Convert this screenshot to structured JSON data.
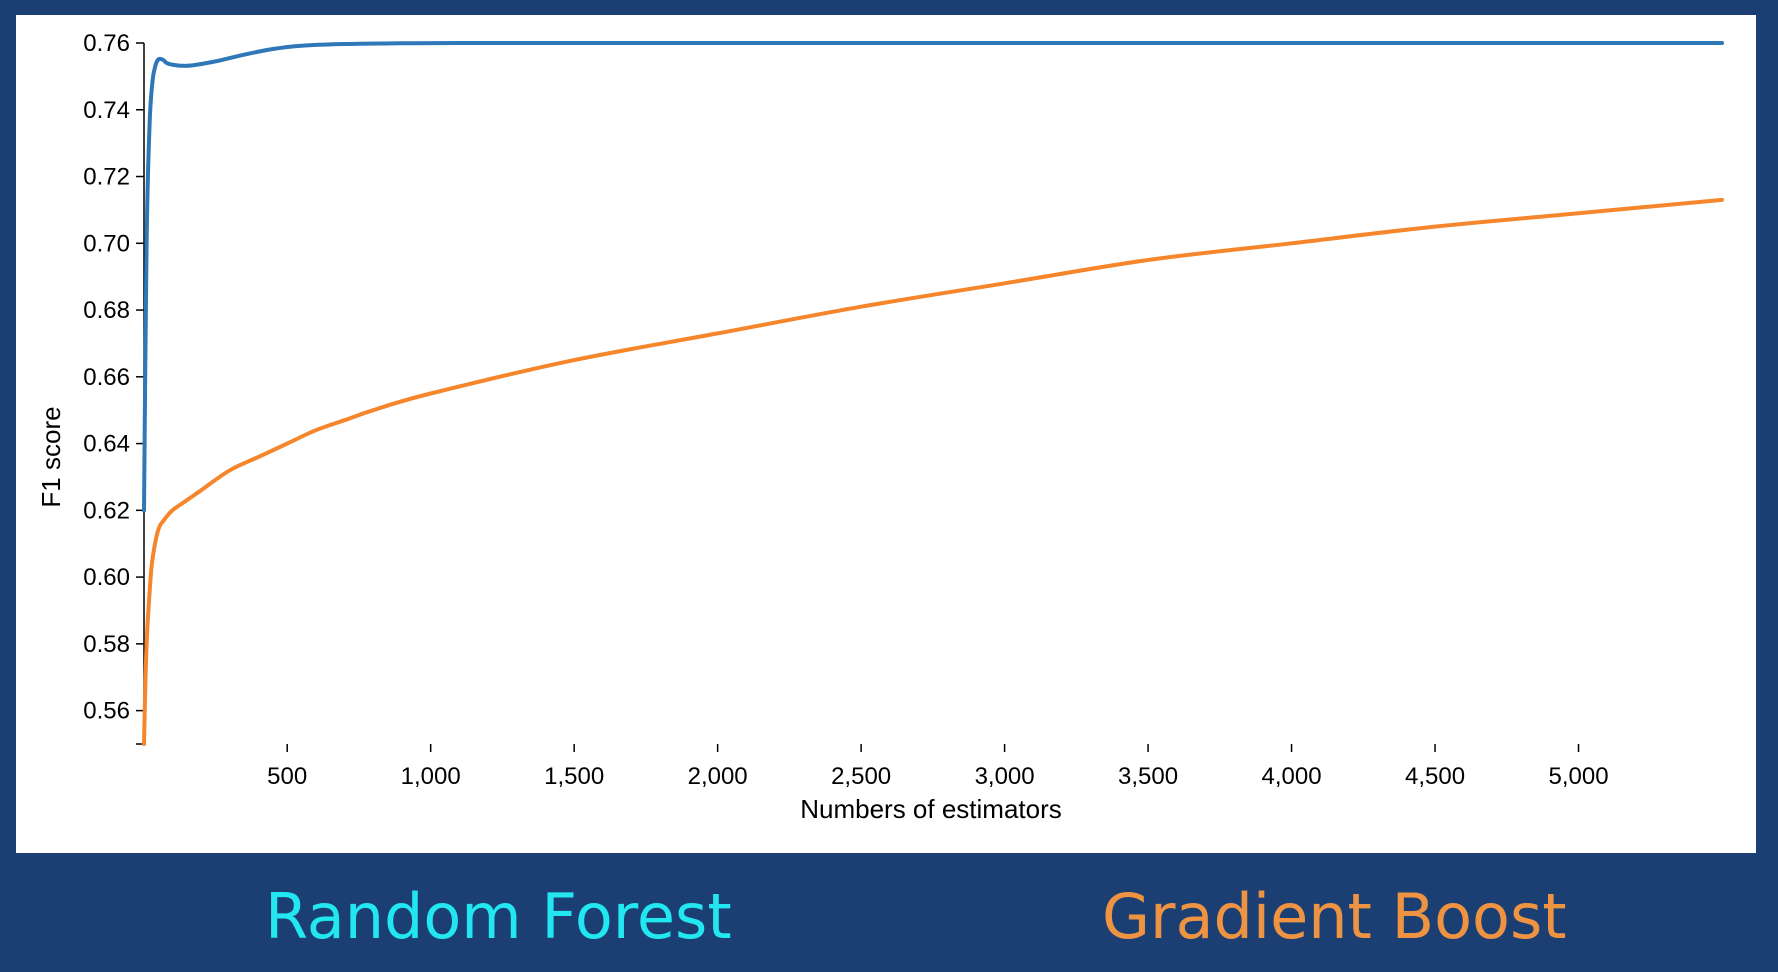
{
  "captions": {
    "left": "Random Forest",
    "right": "Gradient Boost",
    "left_color": "#22e6f0",
    "right_color": "#ee9342"
  },
  "chart_data": {
    "type": "line",
    "title": "",
    "xlabel": "Numbers of estimators",
    "ylabel": "F1 score",
    "xlim": [
      1,
      5500
    ],
    "ylim": [
      0.55,
      0.76
    ],
    "x_ticks": [
      500,
      1000,
      1500,
      2000,
      2500,
      3000,
      3500,
      4000,
      4500,
      5000
    ],
    "x_tick_labels": [
      "500",
      "1,000",
      "1,500",
      "2,000",
      "2,500",
      "3,000",
      "3,500",
      "4,000",
      "4,500",
      "5,000"
    ],
    "y_ticks": [
      0.56,
      0.58,
      0.6,
      0.62,
      0.64,
      0.66,
      0.68,
      0.7,
      0.72,
      0.74,
      0.76
    ],
    "y_tick_labels": [
      "0.56",
      "0.58",
      "0.60",
      "0.62",
      "0.64",
      "0.66",
      "0.68",
      "0.70",
      "0.72",
      "0.74",
      "0.76"
    ],
    "grid": false,
    "legend": "none",
    "series": [
      {
        "color": "#2e78b8",
        "x": [
          1,
          10,
          20,
          30,
          40,
          50,
          60,
          70,
          80,
          100,
          130,
          170,
          250,
          350,
          450,
          550,
          700,
          900,
          1100,
          2000,
          3000,
          4000,
          5000,
          5500
        ],
        "y": [
          0.62,
          0.7,
          0.735,
          0.748,
          0.753,
          0.755,
          0.7552,
          0.7548,
          0.754,
          0.7535,
          0.7532,
          0.7533,
          0.7545,
          0.7565,
          0.7582,
          0.7592,
          0.7597,
          0.7599,
          0.76,
          0.76,
          0.76,
          0.76,
          0.76,
          0.76
        ]
      },
      {
        "color": "#f5862b",
        "x": [
          1,
          5,
          10,
          20,
          30,
          50,
          70,
          100,
          150,
          200,
          300,
          400,
          500,
          600,
          700,
          800,
          1000,
          1500,
          2000,
          2500,
          3000,
          3500,
          4000,
          4500,
          5000,
          5500
        ],
        "y": [
          0.55,
          0.565,
          0.58,
          0.595,
          0.605,
          0.614,
          0.617,
          0.62,
          0.623,
          0.626,
          0.632,
          0.636,
          0.64,
          0.644,
          0.647,
          0.65,
          0.655,
          0.665,
          0.673,
          0.681,
          0.688,
          0.695,
          0.7,
          0.705,
          0.709,
          0.713
        ]
      }
    ]
  }
}
